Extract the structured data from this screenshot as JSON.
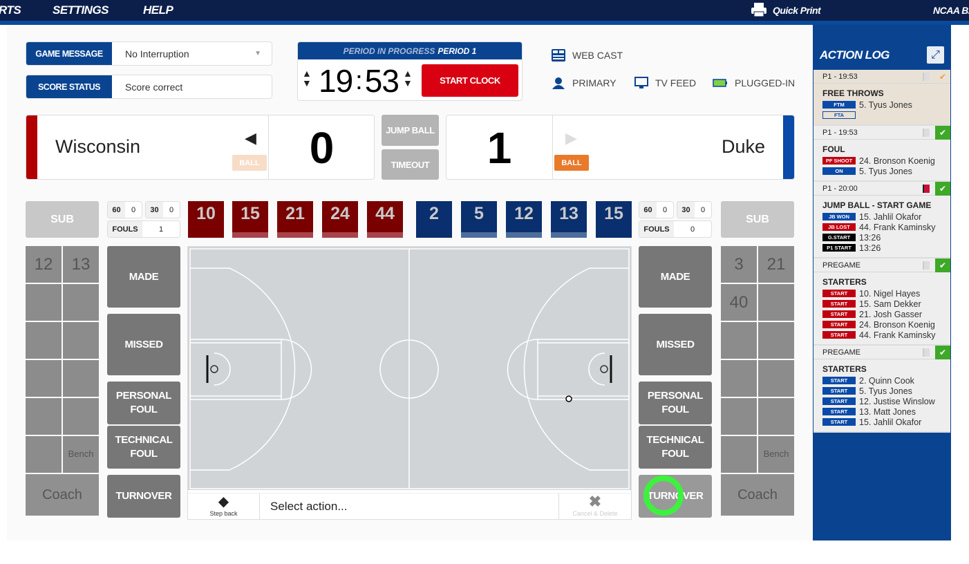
{
  "nav": {
    "items": [
      "RTS",
      "SETTINGS",
      "HELP"
    ],
    "quick_print": "Quick Print",
    "brand": "NCAA BA"
  },
  "game_message": {
    "label": "GAME MESSAGE",
    "value": "No Interruption"
  },
  "score_status": {
    "label": "SCORE STATUS",
    "value": "Score correct"
  },
  "clock": {
    "period_label": "PERIOD IN PROGRESS",
    "period": "PERIOD 1",
    "minutes": "19",
    "seconds": "53",
    "start_label": "START CLOCK"
  },
  "status": {
    "webcast": "WEB CAST",
    "primary": "PRIMARY",
    "tv_feed": "TV FEED",
    "power": "PLUGGED-IN"
  },
  "home": {
    "name": "Wisconsin",
    "score": "0",
    "ball_label": "BALL",
    "color": "#b00000",
    "players": [
      "10",
      "15",
      "21",
      "24",
      "44"
    ],
    "t60": "60",
    "t60v": "0",
    "t30": "30",
    "t30v": "0",
    "fouls_label": "FOULS",
    "fouls": "1",
    "bench": [
      "12",
      "13",
      "",
      "",
      "",
      "",
      "",
      "",
      "",
      "",
      "",
      "Bench"
    ],
    "coach": "Coach",
    "sub": "SUB"
  },
  "away": {
    "name": "Duke",
    "score": "1",
    "ball_label": "BALL",
    "color": "#0a4aa8",
    "players": [
      "2",
      "5",
      "12",
      "13",
      "15"
    ],
    "t60": "60",
    "t60v": "0",
    "t30": "30",
    "t30v": "0",
    "fouls_label": "FOULS",
    "fouls": "0",
    "bench": [
      "3",
      "21",
      "40",
      "",
      "",
      "",
      "",
      "",
      "",
      "",
      "",
      "Bench"
    ],
    "coach": "Coach",
    "sub": "SUB"
  },
  "center": {
    "jump_ball": "JUMP BALL",
    "timeout": "TIMEOUT"
  },
  "actions": {
    "made": "MADE",
    "missed": "MISSED",
    "personal_foul": "PERSONAL FOUL",
    "technical_foul": "TECHNICAL FOUL",
    "turnover": "TURNOVER"
  },
  "actionbar": {
    "step_back": "Step back",
    "prompt": "Select action...",
    "cancel": "Cancel & Delete"
  },
  "log": {
    "title": "ACTION LOG",
    "entries": [
      {
        "header": "P1  -  19:53",
        "title": "FREE THROWS",
        "highlight": true,
        "check": "pending",
        "flag": "gray",
        "rows": [
          {
            "tag": "FTM",
            "type": "blue",
            "text": "5. Tyus Jones"
          },
          {
            "tag": "FTA",
            "type": "outline",
            "text": ""
          }
        ]
      },
      {
        "header": "P1  -  19:53",
        "title": "FOUL",
        "check": "ok",
        "flag": "gray",
        "rows": [
          {
            "tag": "PF SHOOT",
            "type": "red",
            "text": "24. Bronson Koenig"
          },
          {
            "tag": "ON",
            "type": "blue",
            "text": "5. Tyus Jones"
          }
        ]
      },
      {
        "header": "P1  -  20:00",
        "title": "JUMP BALL - START GAME",
        "check": "ok",
        "flag": "red",
        "rows": [
          {
            "tag": "JB WON",
            "type": "blue",
            "text": "15. Jahlil Okafor"
          },
          {
            "tag": "JB LOST",
            "type": "red",
            "text": "44. Frank Kaminsky"
          },
          {
            "tag": "G.START",
            "type": "black",
            "text": "13:26"
          },
          {
            "tag": "P1 START",
            "type": "black",
            "text": "13:26"
          }
        ]
      },
      {
        "header": "PREGAME",
        "title": "STARTERS",
        "check": "ok",
        "flag": "gray",
        "rows": [
          {
            "tag": "START",
            "type": "red",
            "text": "10. Nigel Hayes"
          },
          {
            "tag": "START",
            "type": "red",
            "text": "15. Sam Dekker"
          },
          {
            "tag": "START",
            "type": "red",
            "text": "21. Josh Gasser"
          },
          {
            "tag": "START",
            "type": "red",
            "text": "24. Bronson Koenig"
          },
          {
            "tag": "START",
            "type": "red",
            "text": "44. Frank Kaminsky"
          }
        ]
      },
      {
        "header": "PREGAME",
        "title": "STARTERS",
        "check": "ok",
        "flag": "gray",
        "rows": [
          {
            "tag": "START",
            "type": "blue",
            "text": "2. Quinn Cook"
          },
          {
            "tag": "START",
            "type": "blue",
            "text": "5. Tyus Jones"
          },
          {
            "tag": "START",
            "type": "blue",
            "text": "12. Justise Winslow"
          },
          {
            "tag": "START",
            "type": "blue",
            "text": "13. Matt Jones"
          },
          {
            "tag": "START",
            "type": "blue",
            "text": "15. Jahlil Okafor"
          }
        ]
      }
    ]
  },
  "colors": {
    "navy": "#0c1f4b",
    "brand_blue": "#0a4491",
    "home_player": "#7a0000",
    "away_player": "#0a2f6e",
    "start_red": "#d90012",
    "ball_orange": "#e87a2a",
    "check_green": "#3ea827"
  }
}
